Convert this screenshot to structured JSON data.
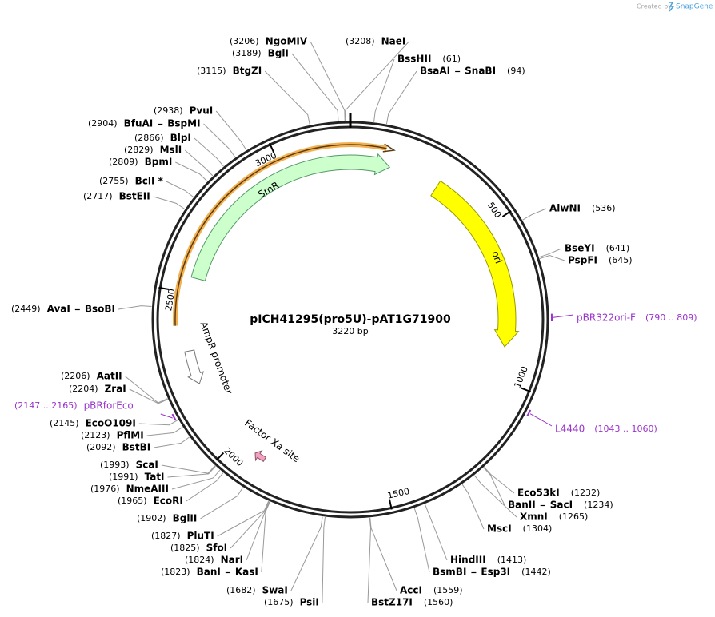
{
  "credit": {
    "prefix": "Created by",
    "brand": "SnapGene"
  },
  "plasmid": {
    "name": "pICH41295(pro5U)-pAT1G71900",
    "length": {
      "value": 3220,
      "label": "3220 bp"
    }
  },
  "ticks": [
    500,
    1000,
    1500,
    2000,
    2500,
    3000
  ],
  "features": [
    {
      "name": "SmR"
    },
    {
      "name": "ori"
    },
    {
      "name": "AmpR promoter"
    },
    {
      "name": "Factor Xa site"
    }
  ],
  "sites": [
    {
      "enzymes": [
        "NgoMIV"
      ],
      "position": {
        "value": 3206,
        "label": "(3206)"
      }
    },
    {
      "enzymes": [
        "BglI"
      ],
      "position": {
        "value": 3189,
        "label": "(3189)"
      }
    },
    {
      "enzymes": [
        "BtgZI"
      ],
      "position": {
        "value": 3115,
        "label": "(3115)"
      }
    },
    {
      "enzymes": [
        "NaeI"
      ],
      "position": {
        "value": 3208,
        "label": "(3208)"
      }
    },
    {
      "enzymes": [
        "BssHII"
      ],
      "position": {
        "value": 61,
        "label": "(61)"
      }
    },
    {
      "enzymes": [
        "BsaAI",
        "SnaBI"
      ],
      "position": {
        "value": 94,
        "label": "(94)"
      }
    },
    {
      "enzymes": [
        "AlwNI"
      ],
      "position": {
        "value": 536,
        "label": "(536)"
      }
    },
    {
      "enzymes": [
        "BseYI"
      ],
      "position": {
        "value": 641,
        "label": "(641)"
      }
    },
    {
      "enzymes": [
        "PspFI"
      ],
      "position": {
        "value": 645,
        "label": "(645)"
      }
    },
    {
      "enzymes": [
        "Eco53kI"
      ],
      "position": {
        "value": 1232,
        "label": "(1232)"
      }
    },
    {
      "enzymes": [
        "BanII",
        "SacI"
      ],
      "position": {
        "value": 1234,
        "label": "(1234)"
      }
    },
    {
      "enzymes": [
        "XmnI"
      ],
      "position": {
        "value": 1265,
        "label": "(1265)"
      }
    },
    {
      "enzymes": [
        "MscI"
      ],
      "position": {
        "value": 1304,
        "label": "(1304)"
      }
    },
    {
      "enzymes": [
        "HindIII"
      ],
      "position": {
        "value": 1413,
        "label": "(1413)"
      }
    },
    {
      "enzymes": [
        "BsmBI",
        "Esp3I"
      ],
      "position": {
        "value": 1442,
        "label": "(1442)"
      }
    },
    {
      "enzymes": [
        "AccI"
      ],
      "position": {
        "value": 1559,
        "label": "(1559)"
      }
    },
    {
      "enzymes": [
        "BstZ17I"
      ],
      "position": {
        "value": 1560,
        "label": "(1560)"
      }
    },
    {
      "enzymes": [
        "SwaI"
      ],
      "position": {
        "value": 1682,
        "label": "(1682)"
      }
    },
    {
      "enzymes": [
        "PsiI"
      ],
      "position": {
        "value": 1675,
        "label": "(1675)"
      }
    },
    {
      "enzymes": [
        "BanI",
        "KasI"
      ],
      "position": {
        "value": 1823,
        "label": "(1823)"
      }
    },
    {
      "enzymes": [
        "NarI"
      ],
      "position": {
        "value": 1824,
        "label": "(1824)"
      }
    },
    {
      "enzymes": [
        "SfoI"
      ],
      "position": {
        "value": 1825,
        "label": "(1825)"
      }
    },
    {
      "enzymes": [
        "PluTI"
      ],
      "position": {
        "value": 1827,
        "label": "(1827)"
      }
    },
    {
      "enzymes": [
        "BglII"
      ],
      "position": {
        "value": 1902,
        "label": "(1902)"
      }
    },
    {
      "enzymes": [
        "EcoRI"
      ],
      "position": {
        "value": 1965,
        "label": "(1965)"
      }
    },
    {
      "enzymes": [
        "NmeAIII"
      ],
      "position": {
        "value": 1976,
        "label": "(1976)"
      }
    },
    {
      "enzymes": [
        "TatI"
      ],
      "position": {
        "value": 1991,
        "label": "(1991)"
      }
    },
    {
      "enzymes": [
        "ScaI"
      ],
      "position": {
        "value": 1993,
        "label": "(1993)"
      }
    },
    {
      "enzymes": [
        "BstBI"
      ],
      "position": {
        "value": 2092,
        "label": "(2092)"
      }
    },
    {
      "enzymes": [
        "PflMI"
      ],
      "position": {
        "value": 2123,
        "label": "(2123)"
      }
    },
    {
      "enzymes": [
        "EcoO109I"
      ],
      "position": {
        "value": 2145,
        "label": "(2145)"
      }
    },
    {
      "enzymes": [
        "ZraI"
      ],
      "position": {
        "value": 2204,
        "label": "(2204)"
      }
    },
    {
      "enzymes": [
        "AatII"
      ],
      "position": {
        "value": 2206,
        "label": "(2206)"
      }
    },
    {
      "enzymes": [
        "AvaI",
        "BsoBI"
      ],
      "position": {
        "value": 2449,
        "label": "(2449)"
      }
    },
    {
      "enzymes": [
        "BstEII"
      ],
      "position": {
        "value": 2717,
        "label": "(2717)"
      }
    },
    {
      "enzymes": [
        "BclI *"
      ],
      "position": {
        "value": 2755,
        "label": "(2755)"
      }
    },
    {
      "enzymes": [
        "BpmI"
      ],
      "position": {
        "value": 2809,
        "label": "(2809)"
      }
    },
    {
      "enzymes": [
        "MslI"
      ],
      "position": {
        "value": 2829,
        "label": "(2829)"
      }
    },
    {
      "enzymes": [
        "BlpI"
      ],
      "position": {
        "value": 2866,
        "label": "(2866)"
      }
    },
    {
      "enzymes": [
        "BfuAI",
        "BspMI"
      ],
      "position": {
        "value": 2904,
        "label": "(2904)"
      }
    },
    {
      "enzymes": [
        "PvuI"
      ],
      "position": {
        "value": 2938,
        "label": "(2938)"
      }
    }
  ],
  "primers": [
    {
      "name": "pBR322ori-F",
      "location": {
        "value": [
          790,
          809
        ],
        "label": "(790 .. 809)"
      }
    },
    {
      "name": "L4440",
      "location": {
        "value": [
          1043,
          1060
        ],
        "label": "(1043 .. 1060)"
      }
    },
    {
      "name": "pBRforEco",
      "location": {
        "value": [
          2147,
          2165
        ],
        "label": "(2147 .. 2165)"
      }
    }
  ]
}
